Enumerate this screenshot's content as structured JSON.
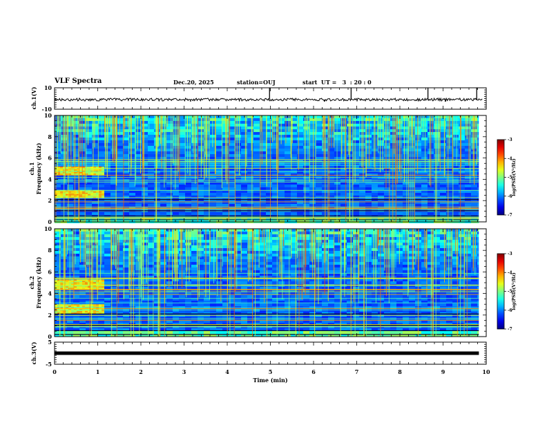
{
  "header": {
    "title": "VLF Spectra",
    "date": "Dec.20, 2025",
    "station": "station=OUJ",
    "start": "start  UT =   3  : 20 : 0"
  },
  "chart_data": [
    {
      "type": "line",
      "name": "ch1-waveform",
      "ylabel": "ch.1(V)",
      "ylim": [
        -10,
        10
      ],
      "ytick_labels": [
        "10",
        "-10"
      ],
      "baseline": -1,
      "xlim": [
        0,
        10
      ],
      "spikes": [
        {
          "t": 4.98,
          "v": 10
        },
        {
          "t": 6.87,
          "v": 10
        },
        {
          "t": 8.65,
          "v": 10
        },
        {
          "t": 9.78,
          "v": 10
        },
        {
          "t": 3.15,
          "v": -3
        },
        {
          "t": 6.25,
          "v": -3
        },
        {
          "t": 9.05,
          "v": -3
        }
      ]
    },
    {
      "type": "heatmap",
      "name": "ch1-spectrogram",
      "ylabel": "ch.1",
      "ylabel2": "Frequency (kHz)",
      "ylim": [
        0,
        10
      ],
      "ytick_labels": [
        "0",
        "2",
        "4",
        "6",
        "8",
        "10"
      ],
      "xlim": [
        0,
        10
      ],
      "data_extent_min": 9.83,
      "bright_bands_khz": [
        [
          2.3,
          3.0
        ],
        [
          4.5,
          5.2
        ]
      ],
      "bright_band_end_min": 1.15,
      "colorbar": {
        "label": "log(PSD)(V²/Hz)",
        "range": [
          -7,
          -3
        ],
        "tick_labels": [
          "-3",
          "-4",
          "-5",
          "-6",
          "-7"
        ]
      }
    },
    {
      "type": "heatmap",
      "name": "ch2-spectrogram",
      "ylabel": "ch.2",
      "ylabel2": "Frequency (kHz)",
      "ylim": [
        0,
        10
      ],
      "ytick_labels": [
        "0",
        "2",
        "4",
        "6",
        "8",
        "10"
      ],
      "xlim": [
        0,
        10
      ],
      "data_extent_min": 9.83,
      "bright_bands_khz": [
        [
          2.2,
          3.0
        ],
        [
          4.5,
          5.3
        ]
      ],
      "bright_band_end_min": 1.15,
      "colorbar": {
        "label": "log(PSD)(V²/Hz)",
        "range": [
          -7,
          -3
        ],
        "tick_labels": [
          "-3",
          "-4",
          "-5",
          "-6",
          "-7"
        ]
      }
    },
    {
      "type": "line",
      "name": "ch3-waveform",
      "ylabel": "ch.3(V)",
      "ylim": [
        -5,
        5
      ],
      "ytick_labels": [
        "5",
        "-5"
      ],
      "baseline": 0,
      "xlim": [
        0,
        9.83
      ],
      "xlabel": "Time (min)",
      "xtick_labels": [
        "0",
        "1",
        "2",
        "3",
        "4",
        "5",
        "6",
        "7",
        "8",
        "9",
        "10"
      ]
    }
  ]
}
